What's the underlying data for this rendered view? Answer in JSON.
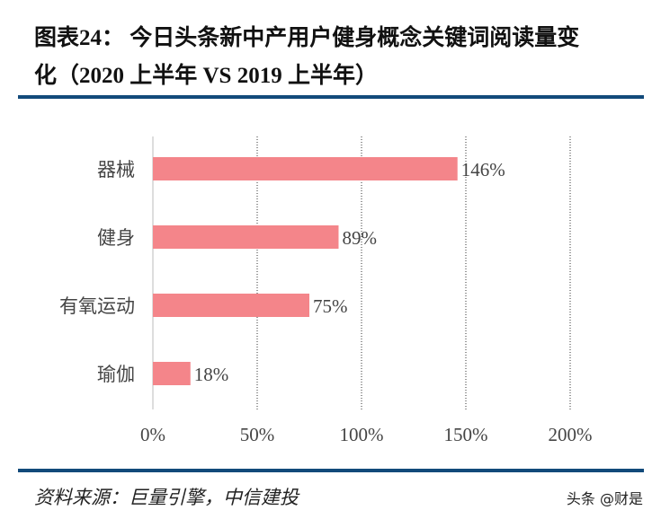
{
  "title_line1": "图表24：  今日头条新中产用户健身概念关键词阅读量变",
  "title_line2": "化（2020 上半年 VS 2019 上半年）",
  "source": "资料来源：巨量引擎，中信建投",
  "watermark": "头条 @财是",
  "chart_data": {
    "type": "bar",
    "orientation": "horizontal",
    "categories": [
      "器械",
      "健身",
      "有氧运动",
      "瑜伽"
    ],
    "values": [
      146,
      89,
      75,
      18
    ],
    "data_labels": [
      "146%",
      "89%",
      "75%",
      "18%"
    ],
    "xlim": [
      0,
      200
    ],
    "x_ticks": [
      0,
      50,
      100,
      150,
      200
    ],
    "x_tick_labels": [
      "0%",
      "50%",
      "100%",
      "150%",
      "200%"
    ],
    "grid": "vertical dotted",
    "bar_color": "#F4858A"
  }
}
